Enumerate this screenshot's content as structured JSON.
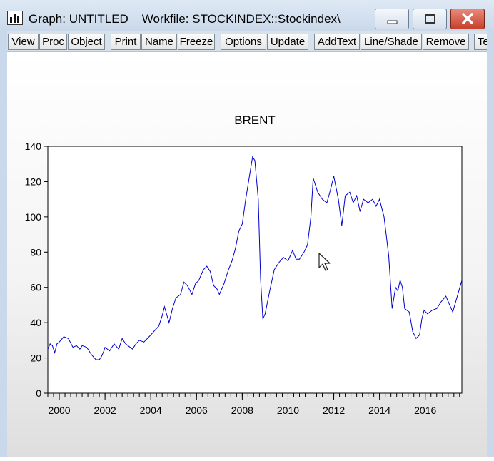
{
  "window": {
    "title": "Graph: UNTITLED    Workfile: STOCKINDEX::Stockindex\\",
    "icon": "bar-chart-icon",
    "controls": [
      "minimize-icon",
      "maximize-icon",
      "close-icon"
    ]
  },
  "toolbar": {
    "buttons": [
      "View",
      "Proc",
      "Object",
      "Print",
      "Name",
      "Freeze",
      "Options",
      "Update",
      "AddText",
      "Line/Shade",
      "Remove",
      "Te"
    ]
  },
  "chart_data": {
    "type": "line",
    "title": "BRENT",
    "xlabel": "",
    "ylabel": "",
    "ylim": [
      0,
      140
    ],
    "xlim": [
      1999.5,
      2017.6
    ],
    "x_ticks": [
      "2000",
      "2002",
      "2004",
      "2006",
      "2008",
      "2010",
      "2012",
      "2014",
      "2016"
    ],
    "y_ticks": [
      "0",
      "20",
      "40",
      "60",
      "80",
      "100",
      "120",
      "140"
    ],
    "grid": false,
    "line_color": "#0000cc",
    "series": [
      {
        "x": [
          1999.5,
          1999.6,
          1999.7,
          1999.8,
          1999.9,
          2000.0,
          2000.2,
          2000.4,
          2000.6,
          2000.75,
          2000.9,
          2001.0,
          2001.2,
          2001.4,
          2001.6,
          2001.75,
          2001.85,
          2001.95,
          2002.0,
          2002.2,
          2002.4,
          2002.6,
          2002.75,
          2002.9,
          2003.0,
          2003.2,
          2003.35,
          2003.5,
          2003.7,
          2003.85,
          2004.0,
          2004.2,
          2004.35,
          2004.5,
          2004.6,
          2004.8,
          2004.95,
          2005.1,
          2005.3,
          2005.45,
          2005.6,
          2005.8,
          2005.95,
          2006.1,
          2006.3,
          2006.45,
          2006.6,
          2006.75,
          2006.9,
          2007.0,
          2007.2,
          2007.4,
          2007.55,
          2007.7,
          2007.85,
          2008.0,
          2008.15,
          2008.3,
          2008.45,
          2008.55,
          2008.7,
          2008.8,
          2008.9,
          2009.0,
          2009.2,
          2009.4,
          2009.6,
          2009.8,
          2010.0,
          2010.2,
          2010.35,
          2010.5,
          2010.7,
          2010.85,
          2011.0,
          2011.1,
          2011.3,
          2011.5,
          2011.7,
          2011.85,
          2012.0,
          2012.2,
          2012.35,
          2012.5,
          2012.7,
          2012.85,
          2013.0,
          2013.15,
          2013.3,
          2013.5,
          2013.7,
          2013.85,
          2014.0,
          2014.2,
          2014.4,
          2014.55,
          2014.7,
          2014.8,
          2014.9,
          2015.0,
          2015.1,
          2015.3,
          2015.45,
          2015.6,
          2015.75,
          2015.85,
          2015.95,
          2016.1,
          2016.3,
          2016.5,
          2016.7,
          2016.9,
          2017.0,
          2017.2,
          2017.4,
          2017.6
        ],
        "values": [
          25,
          28,
          27,
          23,
          28,
          29,
          32,
          31,
          26,
          27,
          25,
          27,
          26,
          22,
          19,
          19,
          21,
          24,
          26,
          24,
          28,
          25,
          31,
          28,
          27,
          25,
          28,
          30,
          29,
          31,
          33,
          36,
          38,
          44,
          49,
          40,
          48,
          54,
          56,
          63,
          61,
          56,
          62,
          64,
          70,
          72,
          69,
          61,
          59,
          56,
          62,
          70,
          75,
          82,
          92,
          96,
          110,
          122,
          134,
          132,
          110,
          65,
          42,
          45,
          58,
          70,
          74,
          77,
          75,
          81,
          76,
          76,
          80,
          84,
          100,
          122,
          114,
          110,
          108,
          115,
          123,
          110,
          95,
          112,
          114,
          108,
          112,
          103,
          110,
          108,
          110,
          106,
          110,
          100,
          78,
          48,
          60,
          58,
          64,
          60,
          48,
          46,
          35,
          31,
          33,
          42,
          47,
          45,
          47,
          48,
          52,
          55,
          52,
          46,
          55,
          64
        ]
      }
    ]
  }
}
